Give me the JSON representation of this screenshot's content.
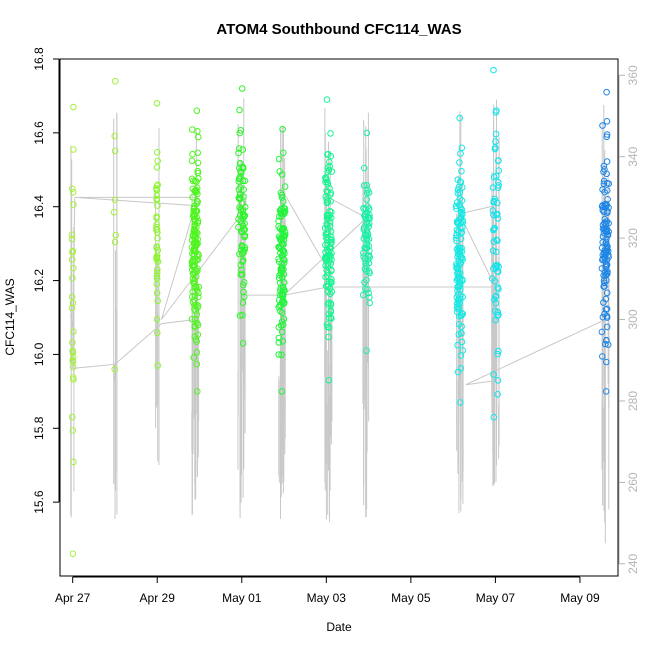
{
  "chart_data": {
    "type": "scatter",
    "title": "ATOM4 Southbound CFC114_WAS",
    "xlabel": "Date",
    "ylabel": "CFC114_WAS",
    "ylim": [
      15.4,
      16.8
    ],
    "y_ticks": [
      "15.6",
      "15.8",
      "16.0",
      "16.2",
      "16.4",
      "16.6",
      "16.8"
    ],
    "y_tick_values": [
      15.6,
      15.8,
      16.0,
      16.2,
      16.4,
      16.6,
      16.8
    ],
    "xlim_days": [
      -0.3,
      12.9
    ],
    "x_ticks": [
      "Apr 27",
      "Apr 29",
      "May 01",
      "May 03",
      "May 05",
      "May 07",
      "May 09"
    ],
    "x_tick_days": [
      0,
      2,
      4,
      6,
      8,
      10,
      12
    ],
    "y2_range": [
      237,
      364
    ],
    "y2_ticks": [
      "240",
      "260",
      "280",
      "300",
      "320",
      "340",
      "360"
    ],
    "y2_tick_values": [
      240,
      260,
      280,
      300,
      320,
      340,
      360
    ],
    "y2_color": "#b5b5b5",
    "line_color": "#c8c8c8",
    "clusters": [
      {
        "day": 0.0,
        "n": 30,
        "min": 15.46,
        "max": 16.67,
        "color": "#a6f13c",
        "dense": false
      },
      {
        "day": 1.0,
        "n": 8,
        "min": 15.96,
        "max": 16.74,
        "color": "#a3f23a",
        "dense": false
      },
      {
        "day": 2.0,
        "n": 40,
        "min": 15.97,
        "max": 16.68,
        "color": "#8ef532",
        "dense": false
      },
      {
        "day": 2.9,
        "n": 140,
        "min": 15.9,
        "max": 16.66,
        "color": "#4ff51f",
        "dense": true
      },
      {
        "day": 4.0,
        "n": 80,
        "min": 16.03,
        "max": 16.72,
        "color": "#2ef52a",
        "dense": true
      },
      {
        "day": 4.95,
        "n": 110,
        "min": 15.9,
        "max": 16.61,
        "color": "#20f53a",
        "dense": true
      },
      {
        "day": 6.05,
        "n": 110,
        "min": 15.93,
        "max": 16.69,
        "color": "#16f590",
        "dense": true
      },
      {
        "day": 6.95,
        "n": 70,
        "min": 16.01,
        "max": 16.6,
        "color": "#18f0a8",
        "dense": true
      },
      {
        "day": 9.15,
        "n": 120,
        "min": 15.87,
        "max": 16.64,
        "color": "#14e9e4",
        "dense": true
      },
      {
        "day": 10.0,
        "n": 60,
        "min": 15.83,
        "max": 16.77,
        "color": "#10e4ec",
        "dense": true
      },
      {
        "day": 12.6,
        "n": 110,
        "min": 15.9,
        "max": 16.71,
        "color": "#1f86e6",
        "dense": true
      }
    ],
    "altitude_path": [
      [
        -0.05,
        301
      ],
      [
        0.0,
        298
      ],
      [
        0.05,
        330
      ],
      [
        0.0,
        288
      ],
      [
        1.0,
        289
      ],
      [
        1.0,
        251
      ],
      [
        1.0,
        289
      ],
      [
        2.1,
        299
      ],
      [
        2.9,
        300
      ],
      [
        2.9,
        330
      ],
      [
        0.05,
        330
      ],
      [
        2.9,
        328
      ],
      [
        2.1,
        300
      ],
      [
        4.0,
        326
      ],
      [
        4.1,
        330
      ],
      [
        4.0,
        306
      ],
      [
        4.9,
        306
      ],
      [
        4.95,
        332
      ],
      [
        6.05,
        312
      ],
      [
        6.05,
        330
      ],
      [
        6.95,
        325
      ],
      [
        5.0,
        306
      ],
      [
        6.05,
        308
      ],
      [
        9.15,
        308
      ],
      [
        10.0,
        308
      ],
      [
        9.15,
        326
      ],
      [
        10.0,
        328
      ],
      [
        10.0,
        285
      ],
      [
        9.3,
        284
      ],
      [
        12.6,
        300
      ],
      [
        12.6,
        245
      ]
    ]
  }
}
